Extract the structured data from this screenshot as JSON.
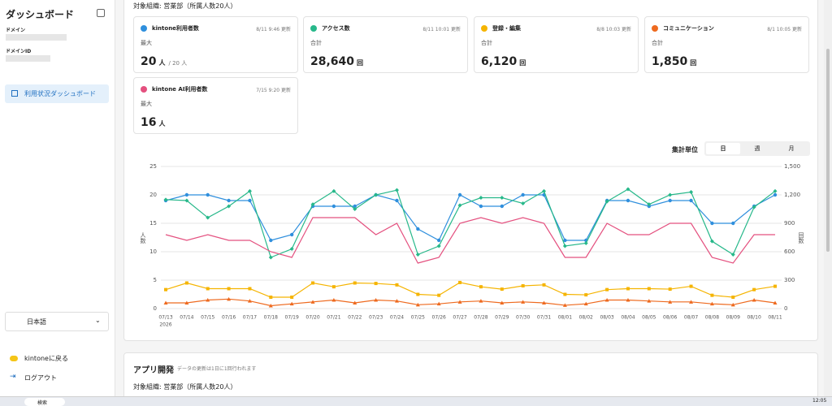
{
  "sidebar": {
    "title": "ダッシュボード",
    "domain_label": "ドメイン",
    "domain_id_label": "ドメインID",
    "nav": "利用状況ダッシュボード",
    "language": "日本語",
    "back": "kintoneに戻る",
    "logout": "ログアウト"
  },
  "org": "対象組織: 営業部（所属人数20人）",
  "cards": [
    {
      "title": "kintone利用者数",
      "updated": "8/11 9:46 更新",
      "sub": "最大",
      "value": "20",
      "unit": "人",
      "extra": "/ 20 人",
      "color": "#2f8fdd"
    },
    {
      "title": "アクセス数",
      "updated": "8/11 10:01 更新",
      "sub": "合計",
      "value": "28,640",
      "unit": "回",
      "color": "#27b88a"
    },
    {
      "title": "登録・編集",
      "updated": "8/8 10:03 更新",
      "sub": "合計",
      "value": "6,120",
      "unit": "回",
      "color": "#f5b400"
    },
    {
      "title": "コミュニケーション",
      "updated": "8/1 10:05 更新",
      "sub": "合計",
      "value": "1,850",
      "unit": "回",
      "color": "#ee6a1f"
    },
    {
      "title": "kintone AI利用者数",
      "updated": "7/15 9:20 更新",
      "sub": "最大",
      "value": "16",
      "unit": "人",
      "color": "#e4507f"
    }
  ],
  "period": {
    "label": "集計単位",
    "options": [
      "日",
      "週",
      "月"
    ],
    "selected": 0
  },
  "chart_data": {
    "type": "line",
    "ylabel": "人数",
    "y2label": "回数",
    "year_label": "2026",
    "categories": [
      "07/13",
      "07/14",
      "07/15",
      "07/16",
      "07/17",
      "07/18",
      "07/19",
      "07/20",
      "07/21",
      "07/22",
      "07/23",
      "07/24",
      "07/25",
      "07/26",
      "07/27",
      "07/28",
      "07/29",
      "07/30",
      "07/31",
      "08/01",
      "08/02",
      "08/03",
      "08/04",
      "08/05",
      "08/06",
      "08/07",
      "08/08",
      "08/09",
      "08/10",
      "08/11"
    ],
    "ylim": [
      0,
      25
    ],
    "yticks": [
      0,
      5,
      10,
      15,
      20,
      25
    ],
    "y2lim": [
      0,
      1500
    ],
    "y2ticks": [
      0,
      300,
      600,
      900,
      {
        "value": 1200,
        "label": "1,200"
      },
      {
        "value": 1500,
        "label": "1,500"
      }
    ],
    "grid": true,
    "series": [
      {
        "name": "kintone利用者数",
        "color": "#2f8fdd",
        "marker": "circle",
        "values": [
          19,
          20,
          20,
          19,
          19,
          12,
          13,
          18,
          18,
          18,
          20,
          19,
          14,
          12,
          20,
          18,
          18,
          20,
          20,
          12,
          12,
          19,
          19,
          18,
          19,
          19,
          15,
          15,
          18,
          20
        ]
      },
      {
        "name": "アクセス数",
        "color": "#27b88a",
        "marker": "diamond",
        "axis": "y2",
        "values": [
          1150,
          1140,
          960,
          1080,
          1240,
          540,
          630,
          1100,
          1240,
          1050,
          1200,
          1250,
          570,
          660,
          1090,
          1170,
          1170,
          1110,
          1240,
          660,
          690,
          1130,
          1260,
          1100,
          1200,
          1230,
          710,
          570,
          1070,
          1240
        ]
      },
      {
        "name": "kintone AI利用者数",
        "color": "#e4507f",
        "marker": "none",
        "values": [
          13,
          12,
          13,
          12,
          12,
          10,
          9,
          16,
          16,
          16,
          13,
          15,
          8,
          9,
          15,
          16,
          15,
          16,
          15,
          9,
          9,
          15,
          13,
          13,
          15,
          15,
          9,
          8,
          13,
          13
        ]
      },
      {
        "name": "登録・編集",
        "color": "#f5b400",
        "marker": "square",
        "axis": "y2",
        "values": [
          200,
          270,
          210,
          210,
          210,
          120,
          120,
          270,
          230,
          270,
          265,
          250,
          150,
          140,
          275,
          230,
          205,
          240,
          250,
          150,
          145,
          200,
          210,
          210,
          205,
          235,
          140,
          120,
          200,
          235
        ]
      },
      {
        "name": "コミュニケーション",
        "color": "#ee6a1f",
        "marker": "triangle",
        "axis": "y2",
        "values": [
          60,
          60,
          90,
          100,
          80,
          30,
          50,
          70,
          90,
          60,
          90,
          80,
          40,
          50,
          70,
          80,
          60,
          70,
          60,
          35,
          50,
          90,
          90,
          80,
          70,
          70,
          50,
          40,
          90,
          60
        ]
      }
    ]
  },
  "section2": {
    "title": "アプリ開発",
    "note": "データの更新は1日に1回行われます",
    "org": "対象組織: 営業部（所属人数20人）"
  },
  "taskbar": {
    "search": "検索",
    "time": "12:05"
  }
}
